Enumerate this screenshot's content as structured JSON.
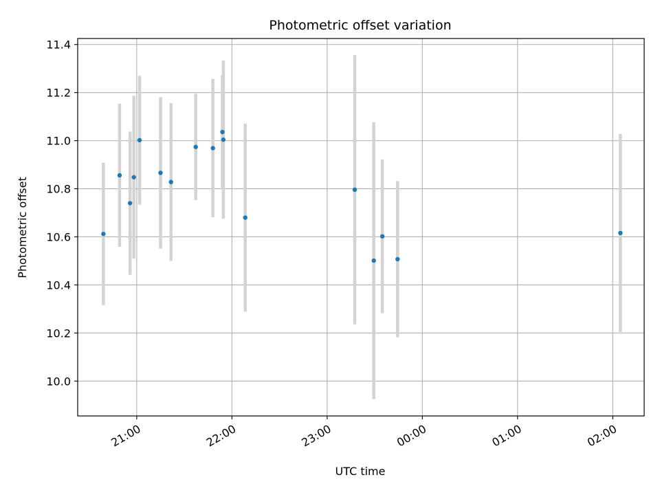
{
  "chart_data": {
    "type": "scatter",
    "title": "Photometric offset variation",
    "xlabel": "UTC time",
    "ylabel": "Photometric offset",
    "x_unit": "hours (UTC clock; values past 24 are after midnight)",
    "xlim": [
      20.38,
      26.33
    ],
    "ylim": [
      9.855,
      11.425
    ],
    "grid": true,
    "x_ticks": [
      {
        "value": 21,
        "label": "21:00"
      },
      {
        "value": 22,
        "label": "22:00"
      },
      {
        "value": 23,
        "label": "23:00"
      },
      {
        "value": 24,
        "label": "00:00"
      },
      {
        "value": 25,
        "label": "01:00"
      },
      {
        "value": 26,
        "label": "02:00"
      }
    ],
    "y_ticks": [
      {
        "value": 10.0,
        "label": "10.0"
      },
      {
        "value": 10.2,
        "label": "10.2"
      },
      {
        "value": 10.4,
        "label": "10.4"
      },
      {
        "value": 10.6,
        "label": "10.6"
      },
      {
        "value": 10.8,
        "label": "10.8"
      },
      {
        "value": 11.0,
        "label": "11.0"
      },
      {
        "value": 11.2,
        "label": "11.2"
      },
      {
        "value": 11.4,
        "label": "11.4"
      }
    ],
    "point_color": "#1f77b4",
    "errorbar_color": "#d3d3d3",
    "points": [
      {
        "x": 20.65,
        "y": 10.612,
        "err": 0.296
      },
      {
        "x": 20.82,
        "y": 10.856,
        "err": 0.298
      },
      {
        "x": 20.93,
        "y": 10.74,
        "err": 0.298
      },
      {
        "x": 20.97,
        "y": 10.848,
        "err": 0.339
      },
      {
        "x": 21.03,
        "y": 11.002,
        "err": 0.268
      },
      {
        "x": 21.25,
        "y": 10.866,
        "err": 0.315
      },
      {
        "x": 21.36,
        "y": 10.828,
        "err": 0.328
      },
      {
        "x": 21.62,
        "y": 10.974,
        "err": 0.221
      },
      {
        "x": 21.8,
        "y": 10.969,
        "err": 0.288
      },
      {
        "x": 21.9,
        "y": 11.036,
        "err": 0.236
      },
      {
        "x": 21.91,
        "y": 11.004,
        "err": 0.329
      },
      {
        "x": 22.14,
        "y": 10.68,
        "err": 0.391
      },
      {
        "x": 23.29,
        "y": 10.796,
        "err": 0.56
      },
      {
        "x": 23.49,
        "y": 10.501,
        "err": 0.576
      },
      {
        "x": 23.58,
        "y": 10.602,
        "err": 0.32
      },
      {
        "x": 23.74,
        "y": 10.507,
        "err": 0.325
      },
      {
        "x": 26.08,
        "y": 10.616,
        "err": 0.412
      }
    ]
  }
}
